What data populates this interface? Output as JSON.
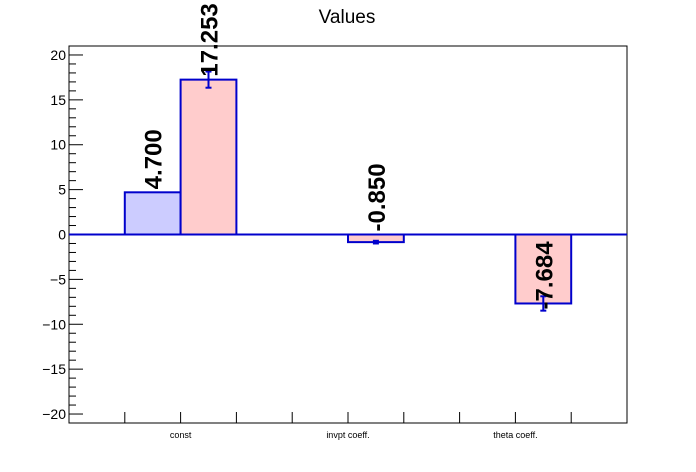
{
  "chart_data": {
    "type": "bar",
    "title": "Values",
    "xlabel": "",
    "ylabel": "",
    "categories": [
      "const",
      "invpt coeff.",
      "theta coeff."
    ],
    "ylim": [
      -21,
      21
    ],
    "yticks": [
      -20,
      -15,
      -10,
      -5,
      0,
      5,
      10,
      15,
      20
    ],
    "grid": false,
    "legend": "none",
    "bars": [
      {
        "category": "const",
        "value": 4.7,
        "label": "4.700",
        "error": 0,
        "fill": "#ccccff",
        "stroke": "#0000cc"
      },
      {
        "category": "const",
        "value": 17.253,
        "label": "17.253",
        "error": 0.9,
        "fill": "#ffcccc",
        "stroke": "#0000cc"
      },
      {
        "category": "invpt coeff.",
        "value": -0.85,
        "label": "-0.850",
        "error": 0.15,
        "fill": "#ffcccc",
        "stroke": "#0000cc"
      },
      {
        "category": "theta coeff.",
        "value": -7.684,
        "label": "-7.684",
        "error": 0.8,
        "fill": "#ffcccc",
        "stroke": "#0000cc"
      }
    ],
    "colors": {
      "axis": "#000000",
      "baseline": "#0000cc"
    }
  }
}
